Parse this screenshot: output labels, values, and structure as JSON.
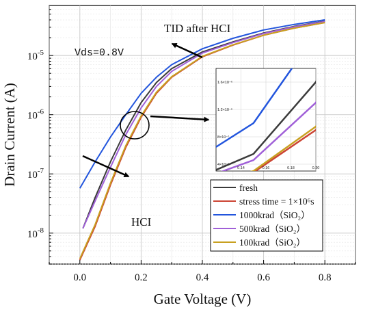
{
  "chart_data": {
    "type": "line",
    "title": "",
    "xlabel": "Gate Voltage (V)",
    "ylabel": "Drain Current (A)",
    "xlim": [
      -0.1,
      0.9
    ],
    "ylim": [
      3e-09,
      7e-05
    ],
    "y_scale": "log",
    "grid": true,
    "legend_position": "bottom-right",
    "x_ticks": [
      {
        "v": 0.0,
        "label": "0.0"
      },
      {
        "v": 0.2,
        "label": "0.2"
      },
      {
        "v": 0.4,
        "label": "0.4"
      },
      {
        "v": 0.6,
        "label": "0.6"
      },
      {
        "v": 0.8,
        "label": "0.8"
      }
    ],
    "y_ticks": [
      {
        "v": 1e-08,
        "mant": "10",
        "exp": "-8"
      },
      {
        "v": 1e-07,
        "mant": "10",
        "exp": "-7"
      },
      {
        "v": 1e-06,
        "mant": "10",
        "exp": "-6"
      },
      {
        "v": 1e-05,
        "mant": "10",
        "exp": "-5"
      }
    ],
    "series": [
      {
        "name": "fresh",
        "color": "#3a3a3a",
        "x": [
          0.01,
          0.05,
          0.1,
          0.15,
          0.2,
          0.25,
          0.3,
          0.4,
          0.5,
          0.6,
          0.7,
          0.8
        ],
        "y": [
          1.2e-08,
          4e-08,
          1.6e-07,
          5.5e-07,
          1.6e-06,
          3.5e-06,
          6e-06,
          1.15e-05,
          1.7e-05,
          2.4e-05,
          3.1e-05,
          3.8e-05
        ]
      },
      {
        "name": "stress time = 1×10⁶s",
        "color": "#cc4433",
        "x": [
          0.0,
          0.05,
          0.1,
          0.15,
          0.2,
          0.25,
          0.3,
          0.4,
          0.5,
          0.6,
          0.7,
          0.8
        ],
        "y": [
          3.5e-09,
          1.3e-08,
          6.5e-08,
          2.8e-07,
          9e-07,
          2.3e-06,
          4.3e-06,
          9.5e-06,
          1.5e-05,
          2.2e-05,
          2.9e-05,
          3.6e-05
        ]
      },
      {
        "name": "1000krad（SiO₂）",
        "color": "#2255dd",
        "x": [
          0.0,
          0.05,
          0.1,
          0.15,
          0.2,
          0.25,
          0.3,
          0.4,
          0.5,
          0.6,
          0.7,
          0.8
        ],
        "y": [
          5.7e-08,
          1.6e-07,
          4.2e-07,
          1e-06,
          2.3e-06,
          4.3e-06,
          7e-06,
          1.3e-05,
          1.95e-05,
          2.7e-05,
          3.35e-05,
          4e-05
        ]
      },
      {
        "name": "500krad（SiO₂）",
        "color": "#a060d8",
        "x": [
          0.01,
          0.05,
          0.1,
          0.15,
          0.2,
          0.25,
          0.3,
          0.4,
          0.5,
          0.6,
          0.7,
          0.8
        ],
        "y": [
          1.2e-08,
          3.5e-08,
          1.3e-07,
          4.6e-07,
          1.3e-06,
          3e-06,
          5.4e-06,
          1.1e-05,
          1.65e-05,
          2.35e-05,
          3.05e-05,
          3.75e-05
        ]
      },
      {
        "name": "100krad（SiO₂）",
        "color": "#c8a020",
        "x": [
          0.0,
          0.05,
          0.1,
          0.15,
          0.2,
          0.25,
          0.3,
          0.4,
          0.5,
          0.6,
          0.7,
          0.8
        ],
        "y": [
          3.7e-09,
          1.4e-08,
          7e-08,
          3e-07,
          9.5e-07,
          2.4e-06,
          4.4e-06,
          9.7e-06,
          1.52e-05,
          2.2e-05,
          2.9e-05,
          3.6e-05
        ]
      }
    ],
    "annotations": {
      "tid": "TID after HCI",
      "vds": "Vds=0.8V",
      "hci": "HCI"
    },
    "inset": {
      "xlim": [
        0.12,
        0.2
      ],
      "ylim": [
        3e-07,
        1.8e-06
      ],
      "x_ticks": [
        {
          "v": 0.14,
          "label": "0.14"
        },
        {
          "v": 0.16,
          "label": "0.16"
        },
        {
          "v": 0.18,
          "label": "0.18"
        },
        {
          "v": 0.2,
          "label": "0.20"
        }
      ],
      "y_ticks": [
        {
          "v": 4e-07,
          "label": "4×10⁻⁷"
        },
        {
          "v": 8e-07,
          "label": "8×10⁻⁷"
        },
        {
          "v": 1.2e-06,
          "label": "1.2×10⁻⁶"
        },
        {
          "v": 1.6e-06,
          "label": "1.6×10⁻⁶"
        }
      ]
    }
  }
}
